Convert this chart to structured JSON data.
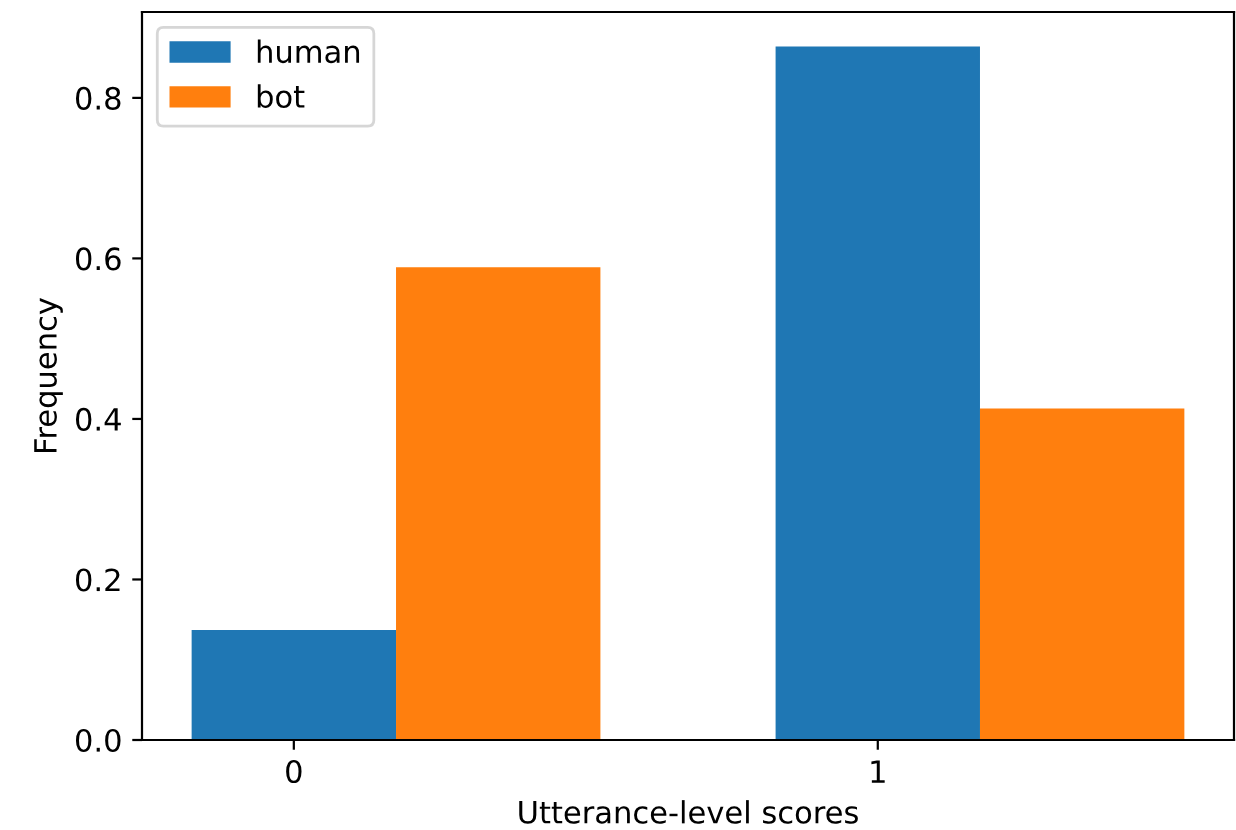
{
  "chart_data": {
    "type": "bar",
    "xlabel": "Utterance-level scores",
    "ylabel": "Frequency",
    "categories": [
      "0",
      "1"
    ],
    "series": [
      {
        "name": "human",
        "color": "#1f77b4",
        "values": [
          0.137,
          0.864
        ]
      },
      {
        "name": "bot",
        "color": "#ff7f0e",
        "values": [
          0.589,
          0.413
        ]
      }
    ],
    "ylim": [
      0,
      0.907
    ],
    "yticks": [
      {
        "value": 0,
        "label": "0.0"
      },
      {
        "value": 0.2,
        "label": "0.2"
      },
      {
        "value": 0.4,
        "label": "0.4"
      },
      {
        "value": 0.6,
        "label": "0.6"
      },
      {
        "value": 0.8,
        "label": "0.8"
      }
    ],
    "legend": "top left",
    "grid": false
  }
}
